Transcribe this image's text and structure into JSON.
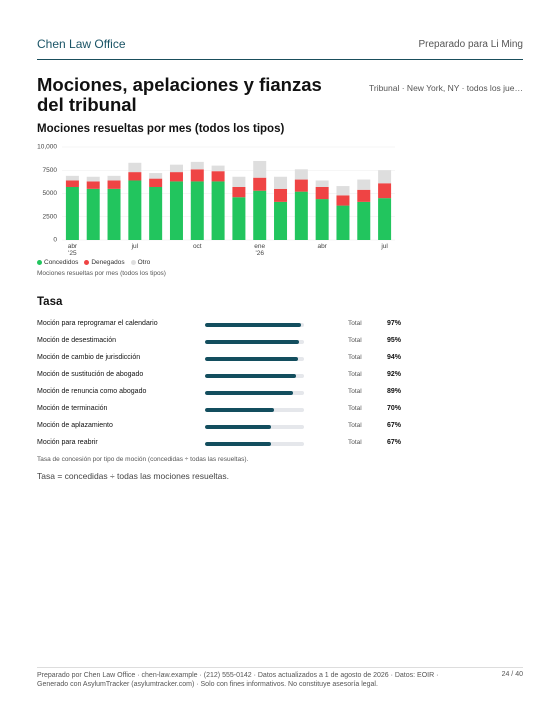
{
  "header": {
    "firm": "Chen Law Office",
    "prepared_for": "Preparado para Li Ming"
  },
  "title": "Mociones, apelaciones y fianzas del tribunal",
  "filter": "Tribunal · New York, NY · todos los jue…",
  "chart_section": "Mociones resueltas por mes (todos los tipos)",
  "chart_data": {
    "type": "bar",
    "stacked": true,
    "categories": [
      "abr '25",
      null,
      null,
      "jul",
      null,
      null,
      "oct",
      null,
      null,
      "ene '26",
      null,
      null,
      "abr",
      null,
      null,
      "jul"
    ],
    "series": [
      {
        "name": "Concedidos",
        "color": "#22c55e",
        "values": [
          5700,
          5500,
          5500,
          6400,
          5700,
          6300,
          6300,
          6300,
          4600,
          5300,
          4100,
          5200,
          4400,
          3700,
          4100,
          4500
        ]
      },
      {
        "name": "Denegados",
        "color": "#ef4444",
        "values": [
          700,
          800,
          900,
          900,
          900,
          1000,
          1300,
          1100,
          1100,
          1400,
          1400,
          1300,
          1300,
          1100,
          1300,
          1600
        ]
      },
      {
        "name": "Otro",
        "color": "#dedede",
        "values": [
          500,
          500,
          500,
          1000,
          600,
          800,
          800,
          600,
          1100,
          1800,
          1300,
          1100,
          700,
          1000,
          1100,
          1400
        ]
      }
    ],
    "ylim": [
      0,
      10000
    ],
    "yticks": [
      0,
      2500,
      5000,
      7500,
      {
        "value": 10000,
        "label": "10,000"
      }
    ],
    "grid": true,
    "caption": "Mociones resueltas por mes (todos los tipos)"
  },
  "rates": {
    "title": "Tasa",
    "xlim": [
      0,
      100
    ],
    "color": "#134e5e",
    "rows": [
      {
        "label": "Moción para reprogramar el calendario",
        "total": "Total",
        "value": 97,
        "value_label": "97%"
      },
      {
        "label": "Moción de desestimación",
        "total": "Total",
        "value": 95,
        "value_label": "95%"
      },
      {
        "label": "Moción de cambio de jurisdicción",
        "total": "Total",
        "value": 94,
        "value_label": "94%"
      },
      {
        "label": "Moción de sustitución de abogado",
        "total": "Total",
        "value": 92,
        "value_label": "92%"
      },
      {
        "label": "Moción de renuncia como abogado",
        "total": "Total",
        "value": 89,
        "value_label": "89%"
      },
      {
        "label": "Moción de terminación",
        "total": "Total",
        "value": 70,
        "value_label": "70%"
      },
      {
        "label": "Moción de aplazamiento",
        "total": "Total",
        "value": 67,
        "value_label": "67%"
      },
      {
        "label": "Moción para reabrir",
        "total": "Total",
        "value": 67,
        "value_label": "67%"
      }
    ],
    "caption": "Tasa de concesión por tipo de moción (concedidas ÷ todas las resueltas).",
    "note": "Tasa = concedidas ÷ todas las mociones resueltas."
  },
  "footer": {
    "text": "Preparado por Chen Law Office · chen-law.example · (212) 555-0142 · Datos actualizados a 1 de agosto de 2026 · Datos: EOIR · Generado con AsylumTracker (asylumtracker.com) · Solo con fines informativos. No constituye asesoría legal.",
    "page": "24 / 40"
  }
}
